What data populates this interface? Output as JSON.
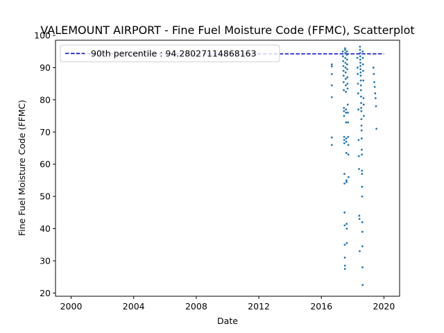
{
  "chart_data": {
    "type": "scatter",
    "title": "VALEMOUNT AIRPORT - Fine Fuel Moisture Code (FFMC), Scatterplot",
    "xlabel": "Date",
    "ylabel": "Fine Fuel Moisture Code (FFMC)",
    "xlim": [
      "1999-01-01",
      "2021-01-01"
    ],
    "ylim": [
      19.0,
      98.5
    ],
    "x_ticks": [
      "2000",
      "2004",
      "2008",
      "2012",
      "2016",
      "2020"
    ],
    "y_ticks": [
      20,
      30,
      40,
      50,
      60,
      70,
      80,
      90,
      100
    ],
    "grid": false,
    "legend_position": "top-left",
    "reference_line": {
      "label": "90th percentile : 94.28027114868163",
      "value": 94.28027114868163,
      "x_range": [
        "2000-01-01",
        "2020-01-01"
      ],
      "style": "dashed",
      "color": "#0000cc"
    },
    "series": [
      {
        "color": "#1f77b4",
        "points": [
          [
            "2016-09-01",
            91.0
          ],
          [
            "2016-09-01",
            90.4
          ],
          [
            "2016-09-01",
            88.0
          ],
          [
            "2016-09-01",
            84.5
          ],
          [
            "2016-09-01",
            80.8
          ],
          [
            "2016-09-01",
            68.3
          ],
          [
            "2016-09-01",
            66.0
          ],
          [
            "2017-05-15",
            95.0
          ],
          [
            "2017-05-20",
            93.5
          ],
          [
            "2017-05-25",
            92.0
          ],
          [
            "2017-05-28",
            90.5
          ],
          [
            "2017-06-01",
            89.0
          ],
          [
            "2017-06-03",
            87.5
          ],
          [
            "2017-06-05",
            85.5
          ],
          [
            "2017-06-08",
            83.0
          ],
          [
            "2017-06-10",
            77.5
          ],
          [
            "2017-06-12",
            76.5
          ],
          [
            "2017-06-14",
            75.0
          ],
          [
            "2017-06-16",
            68.5
          ],
          [
            "2017-06-18",
            67.5
          ],
          [
            "2017-06-20",
            66.5
          ],
          [
            "2017-06-22",
            57.0
          ],
          [
            "2017-06-24",
            54.0
          ],
          [
            "2017-06-26",
            45.0
          ],
          [
            "2017-06-28",
            41.0
          ],
          [
            "2017-06-30",
            35.0
          ],
          [
            "2017-07-02",
            31.0
          ],
          [
            "2017-07-04",
            28.5
          ],
          [
            "2017-07-06",
            27.5
          ],
          [
            "2017-07-08",
            96.0
          ],
          [
            "2017-07-10",
            95.5
          ],
          [
            "2017-07-12",
            94.5
          ],
          [
            "2017-07-14",
            93.0
          ],
          [
            "2017-07-16",
            91.5
          ],
          [
            "2017-07-18",
            90.0
          ],
          [
            "2017-07-20",
            88.5
          ],
          [
            "2017-07-22",
            86.5
          ],
          [
            "2017-07-24",
            84.5
          ],
          [
            "2017-07-26",
            82.5
          ],
          [
            "2017-07-28",
            77.0
          ],
          [
            "2017-07-30",
            76.0
          ],
          [
            "2017-08-01",
            73.0
          ],
          [
            "2017-08-03",
            68.0
          ],
          [
            "2017-08-05",
            67.0
          ],
          [
            "2017-08-07",
            63.5
          ],
          [
            "2017-08-09",
            55.0
          ],
          [
            "2017-08-11",
            54.5
          ],
          [
            "2017-08-13",
            41.5
          ],
          [
            "2017-08-15",
            40.0
          ],
          [
            "2017-08-17",
            35.5
          ],
          [
            "2017-08-20",
            95.0
          ],
          [
            "2017-08-22",
            94.0
          ],
          [
            "2017-08-24",
            92.5
          ],
          [
            "2017-08-26",
            91.0
          ],
          [
            "2017-08-28",
            89.5
          ],
          [
            "2017-08-30",
            87.0
          ],
          [
            "2017-09-02",
            85.0
          ],
          [
            "2017-09-05",
            83.5
          ],
          [
            "2017-09-08",
            78.5
          ],
          [
            "2017-09-11",
            76.0
          ],
          [
            "2017-09-14",
            73.0
          ],
          [
            "2017-09-17",
            68.5
          ],
          [
            "2017-09-20",
            66.0
          ],
          [
            "2017-09-23",
            63.0
          ],
          [
            "2017-09-26",
            56.0
          ],
          [
            "2018-04-20",
            93.0
          ],
          [
            "2018-04-25",
            90.0
          ],
          [
            "2018-05-01",
            88.0
          ],
          [
            "2018-05-05",
            85.0
          ],
          [
            "2018-05-10",
            82.0
          ],
          [
            "2018-05-15",
            77.0
          ],
          [
            "2018-05-20",
            67.5
          ],
          [
            "2018-05-25",
            62.5
          ],
          [
            "2018-05-30",
            58.5
          ],
          [
            "2018-06-04",
            44.0
          ],
          [
            "2018-06-09",
            43.0
          ],
          [
            "2018-06-14",
            33.0
          ],
          [
            "2018-06-20",
            96.5
          ],
          [
            "2018-06-22",
            95.5
          ],
          [
            "2018-06-24",
            94.5
          ],
          [
            "2018-06-26",
            93.5
          ],
          [
            "2018-06-28",
            92.5
          ],
          [
            "2018-06-30",
            91.5
          ],
          [
            "2018-07-02",
            90.5
          ],
          [
            "2018-07-04",
            89.5
          ],
          [
            "2018-07-06",
            88.5
          ],
          [
            "2018-07-08",
            87.5
          ],
          [
            "2018-07-10",
            86.0
          ],
          [
            "2018-07-12",
            84.5
          ],
          [
            "2018-07-14",
            83.0
          ],
          [
            "2018-07-16",
            81.0
          ],
          [
            "2018-07-18",
            79.0
          ],
          [
            "2018-07-20",
            77.5
          ],
          [
            "2018-07-22",
            76.5
          ],
          [
            "2018-07-24",
            74.0
          ],
          [
            "2018-07-26",
            72.0
          ],
          [
            "2018-07-28",
            70.5
          ],
          [
            "2018-07-30",
            68.0
          ],
          [
            "2018-08-01",
            64.5
          ],
          [
            "2018-08-03",
            63.0
          ],
          [
            "2018-08-05",
            58.0
          ],
          [
            "2018-08-07",
            57.0
          ],
          [
            "2018-08-09",
            53.0
          ],
          [
            "2018-08-11",
            50.0
          ],
          [
            "2018-08-13",
            42.0
          ],
          [
            "2018-08-15",
            39.0
          ],
          [
            "2018-08-17",
            34.5
          ],
          [
            "2018-08-19",
            28.0
          ],
          [
            "2018-08-21",
            22.5
          ],
          [
            "2018-08-24",
            95.0
          ],
          [
            "2018-08-27",
            93.0
          ],
          [
            "2018-08-30",
            91.0
          ],
          [
            "2018-09-03",
            89.0
          ],
          [
            "2018-09-07",
            86.0
          ],
          [
            "2018-09-11",
            80.5
          ],
          [
            "2018-09-15",
            78.5
          ],
          [
            "2018-09-19",
            75.0
          ],
          [
            "2019-05-01",
            90.0
          ],
          [
            "2019-05-10",
            88.0
          ],
          [
            "2019-05-20",
            85.5
          ],
          [
            "2019-06-01",
            84.0
          ],
          [
            "2019-06-10",
            82.0
          ],
          [
            "2019-06-20",
            80.5
          ],
          [
            "2019-07-01",
            78.0
          ],
          [
            "2019-07-10",
            71.0
          ]
        ]
      }
    ]
  }
}
